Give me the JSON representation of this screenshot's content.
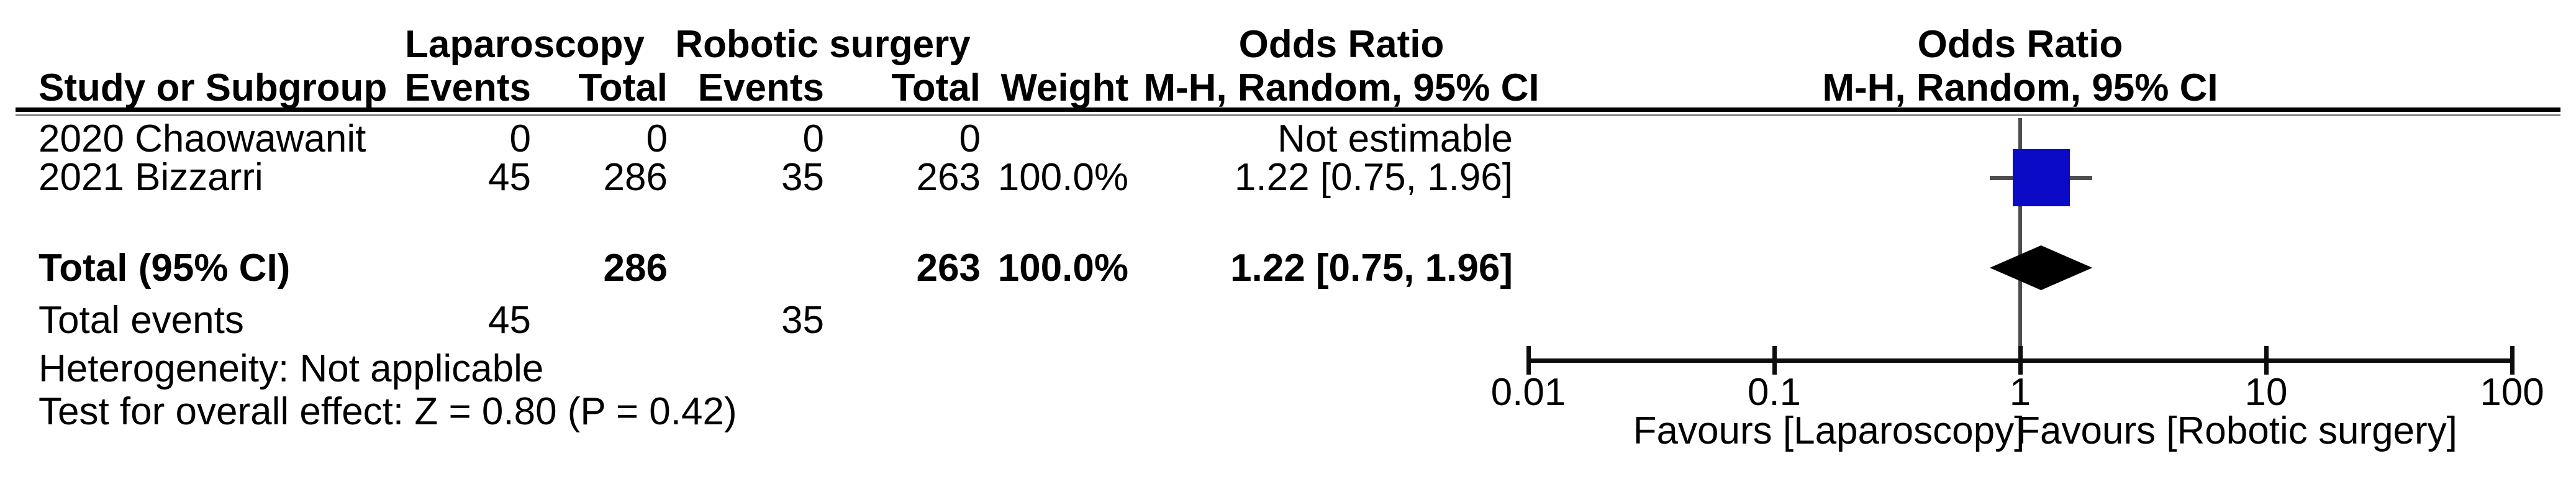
{
  "header": {
    "study_col": "Study or Subgroup",
    "group1": "Laparoscopy",
    "group2": "Robotic surgery",
    "events1": "Events",
    "total1": "Total",
    "events2": "Events",
    "total2": "Total",
    "weight": "Weight",
    "or_text_line1": "Odds Ratio",
    "or_text_line2": "M-H, Random, 95% CI",
    "or_plot_line1": "Odds Ratio",
    "or_plot_line2": "M-H, Random, 95% CI"
  },
  "rows": [
    {
      "study": "2020 Chaowawanit",
      "events1": "0",
      "total1": "0",
      "events2": "0",
      "total2": "0",
      "weight": "",
      "or_ci": "Not estimable"
    },
    {
      "study": "2021 Bizzarri",
      "events1": "45",
      "total1": "286",
      "events2": "35",
      "total2": "263",
      "weight": "100.0%",
      "or_ci": "1.22 [0.75, 1.96]"
    }
  ],
  "total_row": {
    "label": "Total (95% CI)",
    "total1": "286",
    "total2": "263",
    "weight": "100.0%",
    "or_ci": "1.22 [0.75, 1.96]"
  },
  "total_events": {
    "label": "Total events",
    "events1": "45",
    "events2": "35"
  },
  "footnotes": {
    "heterogeneity": "Heterogeneity: Not applicable",
    "overall_effect": "Test for overall effect: Z = 0.80 (P = 0.42)"
  },
  "chart_data": {
    "type": "scatter",
    "subtype": "forest-plot",
    "x_scale": "log10",
    "xlim": [
      0.01,
      100
    ],
    "axis_ticks": [
      0.01,
      0.1,
      1,
      10,
      100
    ],
    "tick_labels": [
      "0.01",
      "0.1",
      "1",
      "10",
      "100"
    ],
    "reference_line": 1,
    "studies": [
      {
        "name": "2020 Chaowawanit",
        "or": null,
        "ci_low": null,
        "ci_high": null,
        "note": "Not estimable"
      },
      {
        "name": "2021 Bizzarri",
        "or": 1.22,
        "ci_low": 0.75,
        "ci_high": 1.96,
        "weight_pct": 100.0
      }
    ],
    "total": {
      "label": "Total (95% CI)",
      "or": 1.22,
      "ci_low": 0.75,
      "ci_high": 1.96
    },
    "favours_left": "Favours [Laparoscopy]",
    "favours_right": "Favours [Robotic surgery]",
    "marker_color": "#0b0bc7",
    "diamond_color": "#000000",
    "line_color": "#4d4d4d"
  }
}
